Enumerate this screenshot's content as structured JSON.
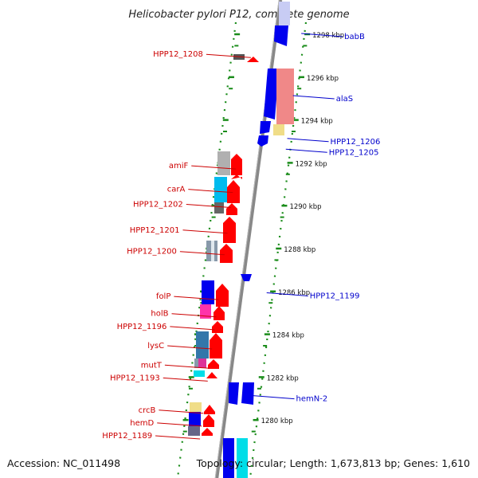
{
  "title": "Helicobacter pylori P12, complete genome",
  "footer": {
    "accession": "Accession: NC_011498",
    "summary": "Topology: circular; Length: 1,673,813 bp; Genes: 1,610"
  },
  "colors": {
    "backbone": "#888888",
    "tick": "#1a8c1a",
    "forward_label": "#cc0000",
    "reverse_label": "#0000cc",
    "forward_arrow": "#ff0000",
    "reverse_arrow": "#0000ee",
    "gray_box": "#aaaaaa",
    "cyan_box": "#00ccee",
    "pink_box": "#ff3399",
    "salmon_box": "#f08080",
    "yellow_box": "#f0dd88",
    "teal_box": "#4477aa"
  },
  "ticks": [
    {
      "label": "1298 kbp",
      "kbp": 1298
    },
    {
      "label": "1296 kbp",
      "kbp": 1296
    },
    {
      "label": "1294 kbp",
      "kbp": 1294
    },
    {
      "label": "1292 kbp",
      "kbp": 1292
    },
    {
      "label": "1290 kbp",
      "kbp": 1290
    },
    {
      "label": "1288 kbp",
      "kbp": 1288
    },
    {
      "label": "1286 kbp",
      "kbp": 1286
    },
    {
      "label": "1284 kbp",
      "kbp": 1284
    },
    {
      "label": "1282 kbp",
      "kbp": 1282
    },
    {
      "label": "1280 kbp",
      "kbp": 1280
    }
  ],
  "genes_forward": [
    {
      "label": "HPP12_1208",
      "kbp": 1297.1
    },
    {
      "label": "amiF",
      "kbp": 1291.9
    },
    {
      "label": "carA",
      "kbp": 1290.8
    },
    {
      "label": "HPP12_1202",
      "kbp": 1290.1
    },
    {
      "label": "HPP12_1201",
      "kbp": 1288.9
    },
    {
      "label": "HPP12_1200",
      "kbp": 1287.9
    },
    {
      "label": "folP",
      "kbp": 1285.8
    },
    {
      "label": "holB",
      "kbp": 1285.0
    },
    {
      "label": "HPP12_1196",
      "kbp": 1284.4
    },
    {
      "label": "lysC",
      "kbp": 1283.5
    },
    {
      "label": "mutT",
      "kbp": 1282.6
    },
    {
      "label": "HPP12_1193",
      "kbp": 1282.0
    },
    {
      "label": "crcB",
      "kbp": 1280.5
    },
    {
      "label": "hemD",
      "kbp": 1279.9
    },
    {
      "label": "HPP12_1189",
      "kbp": 1279.3
    }
  ],
  "genes_reverse": [
    {
      "label": "babB",
      "kbp": 1298.0
    },
    {
      "label": "alaS",
      "kbp": 1295.1
    },
    {
      "label": "HPP12_1206",
      "kbp": 1293.1
    },
    {
      "label": "HPP12_1205",
      "kbp": 1292.6
    },
    {
      "label": "HPP12_1199",
      "kbp": 1285.9
    },
    {
      "label": "hemN-2",
      "kbp": 1281.1
    }
  ]
}
